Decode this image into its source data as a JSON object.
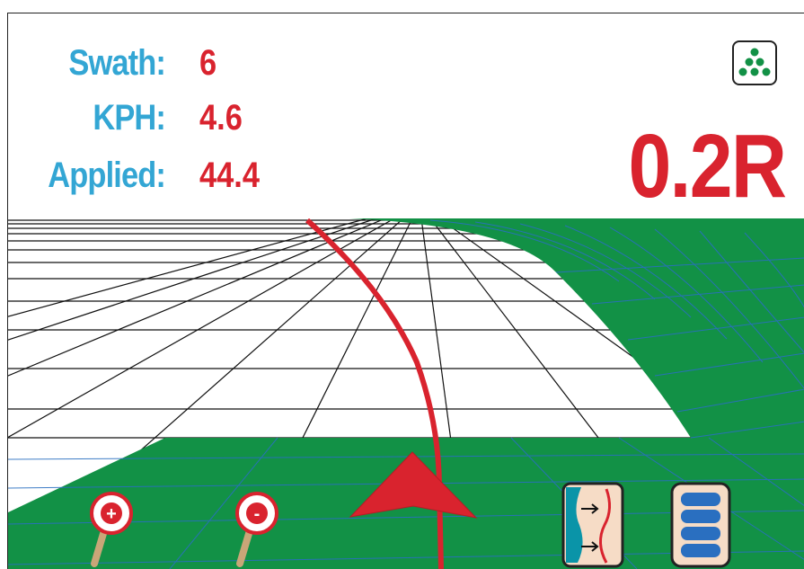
{
  "stats": {
    "swath": {
      "label": "Swath:",
      "value": "6"
    },
    "kph": {
      "label": "KPH:",
      "value": "4.6"
    },
    "applied": {
      "label": "Applied:",
      "value": "44.4"
    }
  },
  "guidance_offset": "0.2R",
  "colors": {
    "label": "#33a6d4",
    "value": "#d9232e",
    "applied_area": "#129146",
    "grid_line": "#2a6fc0",
    "sky": "#ffffff"
  },
  "icons": {
    "mode": "dots-pattern-icon",
    "zoom_in": "zoom-in-magnifier-icon",
    "zoom_out": "zoom-out-magnifier-icon",
    "boundary": "boundary-arrows-icon",
    "sections": "boom-sections-icon"
  },
  "zoom_in_symbol": "+",
  "zoom_out_symbol": "-"
}
